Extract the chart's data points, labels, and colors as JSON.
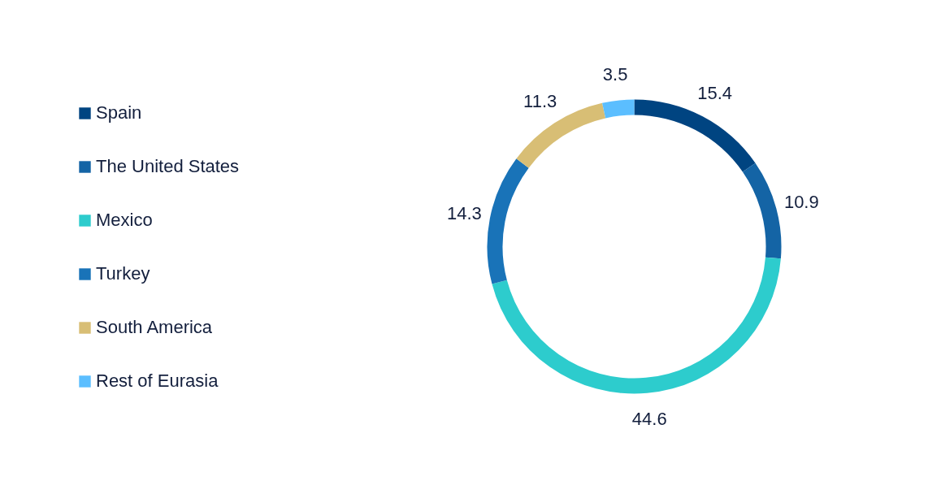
{
  "chart_data": {
    "type": "donut",
    "categories": [
      "Spain",
      "The United States",
      "Mexico",
      "Turkey",
      "South America",
      "Rest of Eurasia"
    ],
    "values": [
      15.4,
      10.9,
      44.6,
      14.3,
      11.3,
      3.5
    ],
    "colors": [
      "#004481",
      "#1464a5",
      "#2dcccd",
      "#1973b8",
      "#d8be75",
      "#5bbeff"
    ],
    "data_labels": true,
    "legend": "left"
  }
}
